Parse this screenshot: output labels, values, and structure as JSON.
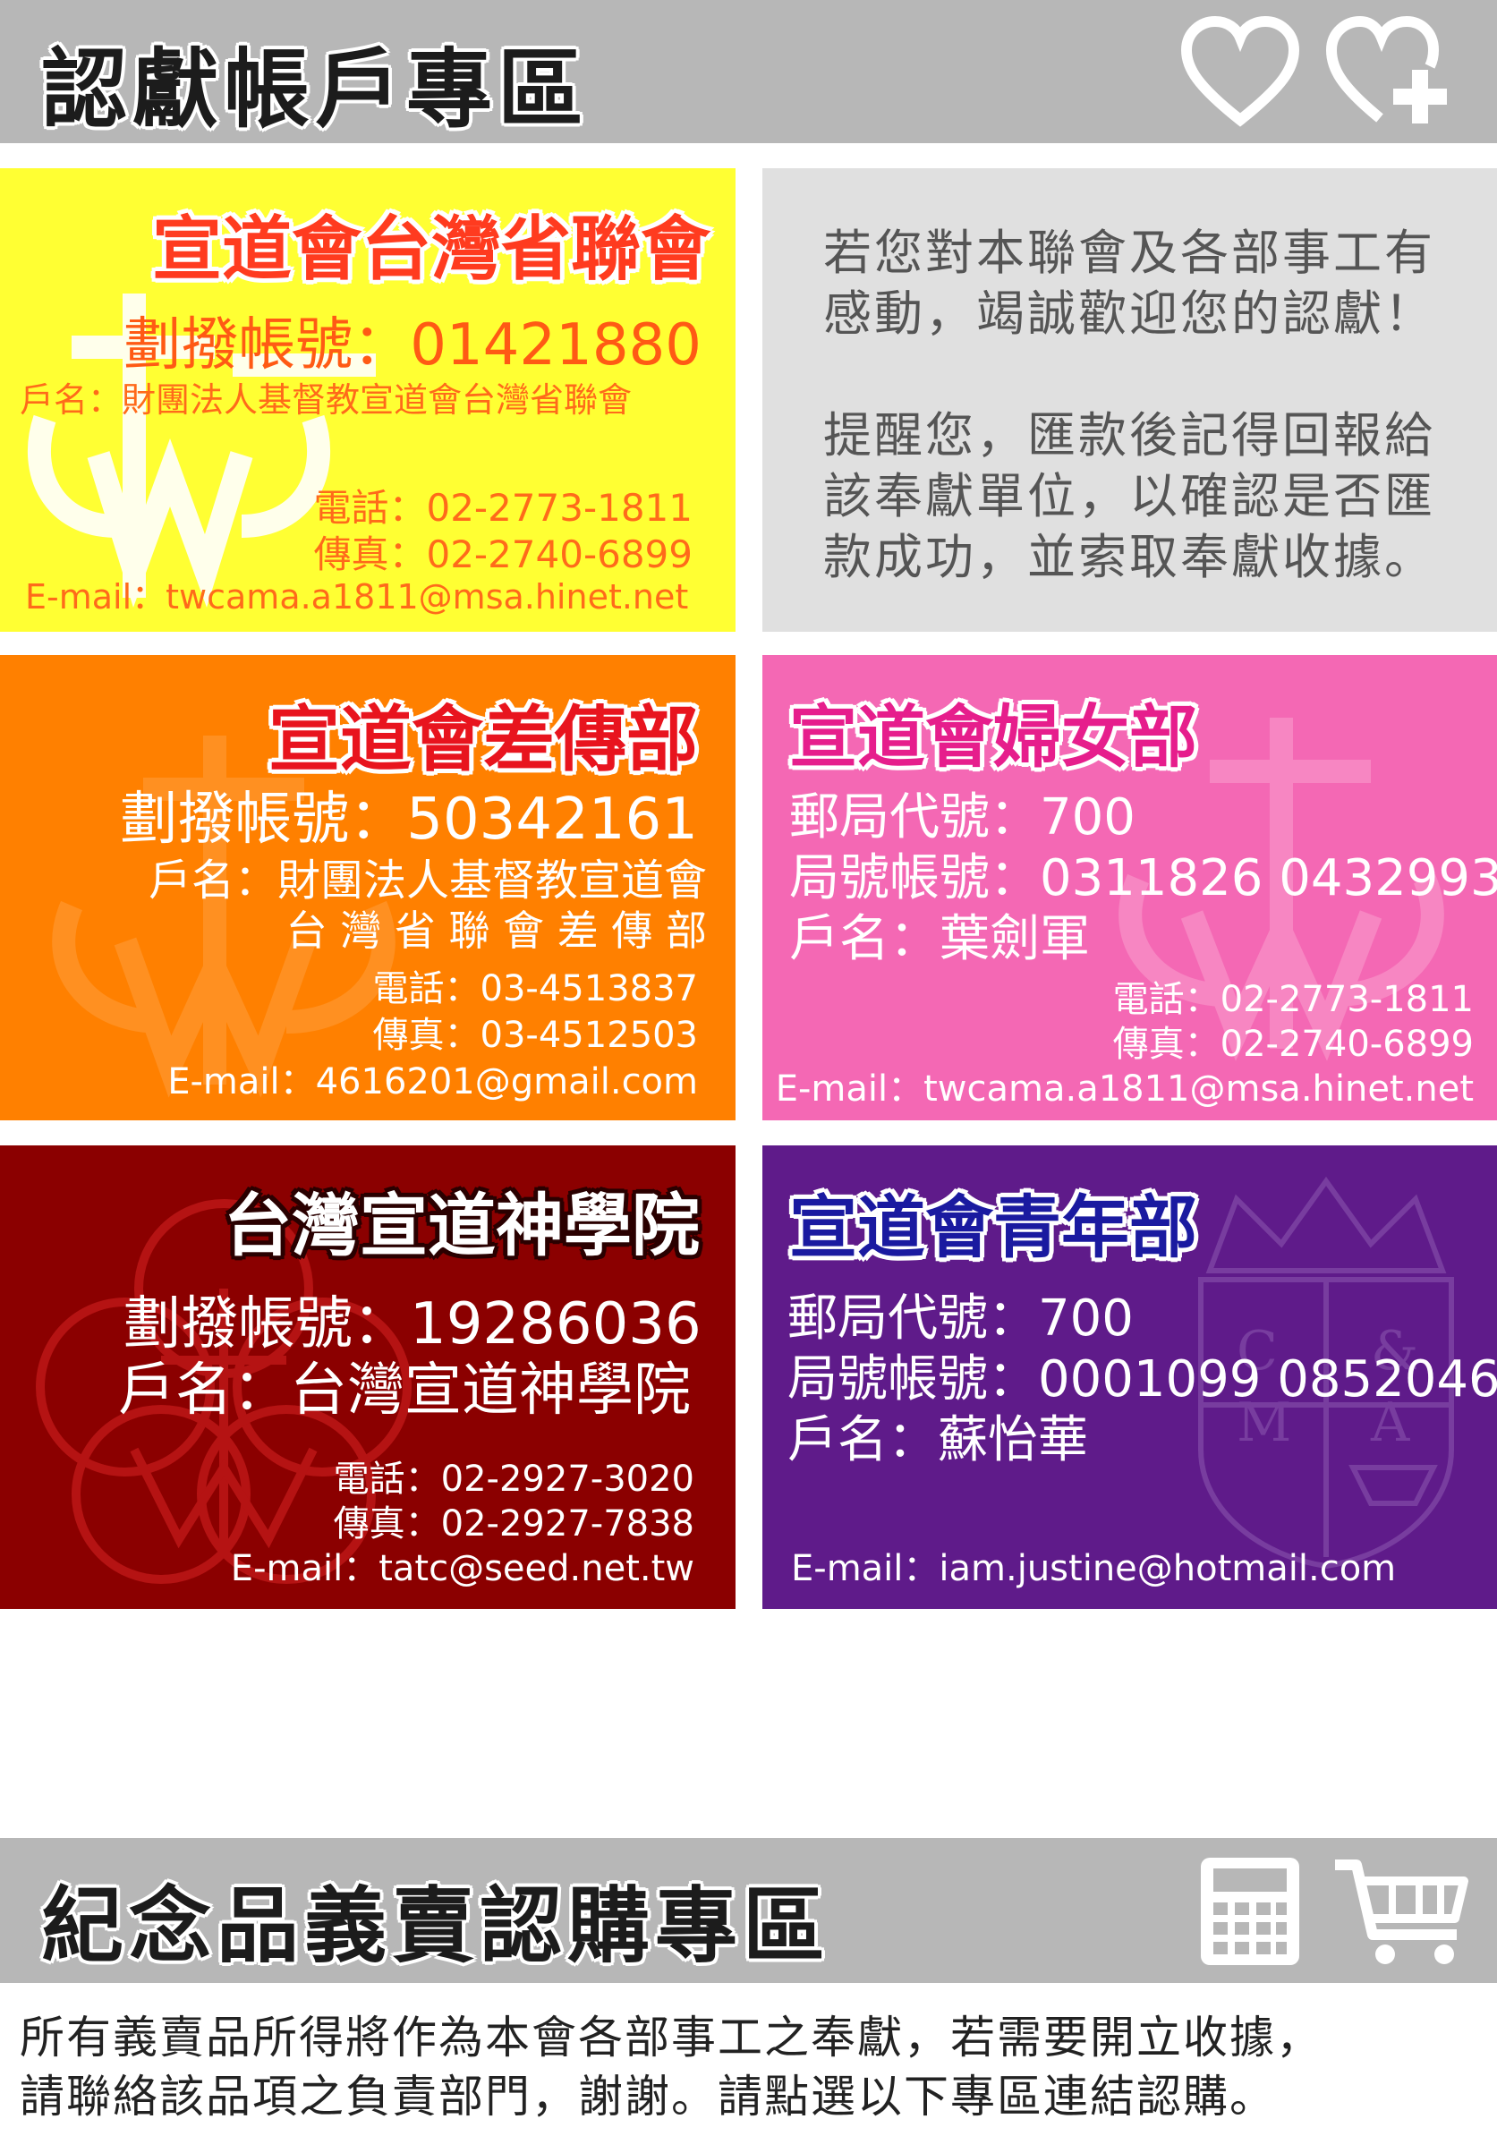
{
  "top_banner": {
    "title": "認獻帳戶專區",
    "icons": [
      "heart-icon",
      "heart-plus-icon"
    ]
  },
  "panels": {
    "provincial": {
      "title": "宣道會台灣省聯會",
      "account": "劃撥帳號：01421880",
      "holder": "戶名：財團法人基督教宣道會台灣省聯會",
      "phone": "電話：02-2773-1811",
      "fax": "傳真：02-2740-6899",
      "email": "E-mail：twcama.a1811@msa.hinet.net",
      "bg": "#ffff33"
    },
    "message": {
      "lines1": [
        "若您對本聯會及各部事工有",
        "感動，竭誠歡迎您的認獻！"
      ],
      "lines2": [
        "提醒您，匯款後記得回報給",
        "該奉獻單位，以確認是否匯",
        "款成功，並索取奉獻收據。"
      ],
      "bg": "#e0e0e0"
    },
    "missions": {
      "title": "宣道會差傳部",
      "account": "劃撥帳號：50342161",
      "holder1": "戶名：財團法人基督教宣道會",
      "holder2": "台 灣 省 聯 會  差 傳 部",
      "phone": "電話：03-4513837",
      "fax": "傳真：03-4512503",
      "email": "E-mail：4616201@gmail.com",
      "bg": "#ff8000"
    },
    "women": {
      "title": "宣道會婦女部",
      "postal_code": "郵局代號：700",
      "account": "局號帳號：0311826 0432993",
      "holder": "戶名：葉劍軍",
      "phone": "電話：02-2773-1811",
      "fax": "傳真：02-2740-6899",
      "email": "E-mail：twcama.a1811@msa.hinet.net",
      "bg": "#f468b4"
    },
    "seminary": {
      "title": "台灣宣道神學院",
      "account": "劃撥帳號：19286036",
      "holder": "戶名：台灣宣道神學院",
      "phone": "電話：02-2927-3020",
      "fax": "傳真：02-2927-7838",
      "email": "E-mail：tatc@seed.net.tw",
      "bg": "#8b0000"
    },
    "youth": {
      "title": "宣道會青年部",
      "postal_code": "郵局代號：700",
      "account": "局號帳號：0001099 0852046",
      "holder": "戶名：蘇怡華",
      "email": "E-mail：iam.justine@hotmail.com",
      "bg": "#5f1b8a",
      "crest_letters": [
        "C",
        "&",
        "M",
        "A"
      ]
    }
  },
  "bottom_banner": {
    "title": "紀念品義賣認購專區",
    "icons": [
      "calculator-icon",
      "shopping-cart-icon"
    ]
  },
  "footer_note": [
    "所有義賣品所得將作為本會各部事工之奉獻，若需要開立收據，",
    "請聯絡該品項之負責部門，謝謝。請點選以下專區連結認購。"
  ]
}
